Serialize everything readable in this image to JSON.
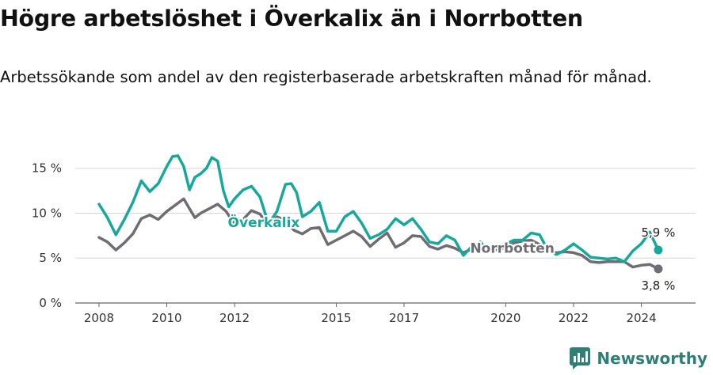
{
  "title": "Högre arbetslöshet i Överkalix än i Norrbotten",
  "subtitle": "Arbetssökande som andel av den registerbaserade arbetskraften månad för månad.",
  "brand": {
    "name": "Newsworthy",
    "icon": "newsworthy-logo-icon"
  },
  "colors": {
    "overkalix": "#16a89b",
    "norrbotten": "#6f6d73",
    "grid": "#d8d8d8",
    "brand": "#2e7f78"
  },
  "chart_data": {
    "type": "line",
    "ylim": [
      0,
      17
    ],
    "y_ticks": [
      0,
      5,
      10,
      15
    ],
    "y_tick_labels": [
      "0 %",
      "5 %",
      "10 %",
      "15 %"
    ],
    "x_ticks": [
      2008,
      2010,
      2012,
      2015,
      2017,
      2020,
      2022,
      2024
    ],
    "x_tick_labels": [
      "2008",
      "2010",
      "2012",
      "2015",
      "2017",
      "2020",
      "2022",
      "2024"
    ],
    "grid": true,
    "series": [
      {
        "name": "Överkalix",
        "end_label": "5,9 %",
        "points": [
          [
            2008.0,
            11.0
          ],
          [
            2008.25,
            9.5
          ],
          [
            2008.5,
            7.6
          ],
          [
            2008.75,
            9.3
          ],
          [
            2009.0,
            11.2
          ],
          [
            2009.25,
            13.6
          ],
          [
            2009.5,
            12.4
          ],
          [
            2009.75,
            13.3
          ],
          [
            2010.0,
            15.2
          ],
          [
            2010.17,
            16.3
          ],
          [
            2010.33,
            16.4
          ],
          [
            2010.5,
            15.2
          ],
          [
            2010.67,
            12.6
          ],
          [
            2010.83,
            14.0
          ],
          [
            2011.0,
            14.4
          ],
          [
            2011.17,
            15.0
          ],
          [
            2011.33,
            16.2
          ],
          [
            2011.5,
            15.8
          ],
          [
            2011.67,
            12.5
          ],
          [
            2011.83,
            10.7
          ],
          [
            2012.0,
            11.6
          ],
          [
            2012.25,
            12.6
          ],
          [
            2012.5,
            13.0
          ],
          [
            2012.75,
            11.8
          ],
          [
            2013.0,
            8.8
          ],
          [
            2013.25,
            10.2
          ],
          [
            2013.5,
            13.2
          ],
          [
            2013.67,
            13.3
          ],
          [
            2013.83,
            12.3
          ],
          [
            2014.0,
            9.6
          ],
          [
            2014.25,
            10.2
          ],
          [
            2014.5,
            11.2
          ],
          [
            2014.75,
            8.0
          ],
          [
            2015.0,
            8.0
          ],
          [
            2015.25,
            9.6
          ],
          [
            2015.5,
            10.2
          ],
          [
            2015.75,
            8.9
          ],
          [
            2016.0,
            7.2
          ],
          [
            2016.25,
            7.6
          ],
          [
            2016.5,
            8.2
          ],
          [
            2016.75,
            9.4
          ],
          [
            2017.0,
            8.7
          ],
          [
            2017.25,
            9.4
          ],
          [
            2017.5,
            8.2
          ],
          [
            2017.75,
            6.8
          ],
          [
            2018.0,
            6.6
          ],
          [
            2018.25,
            7.5
          ],
          [
            2018.5,
            7.0
          ],
          [
            2018.75,
            5.3
          ],
          [
            2019.0,
            6.3
          ],
          [
            2019.25,
            6.8
          ],
          [
            2019.5,
            5.7
          ],
          [
            2019.75,
            6.0
          ],
          [
            2020.0,
            6.6
          ],
          [
            2020.25,
            7.0
          ],
          [
            2020.5,
            7.0
          ],
          [
            2020.75,
            7.8
          ],
          [
            2021.0,
            7.6
          ],
          [
            2021.25,
            5.8
          ],
          [
            2021.5,
            5.4
          ],
          [
            2021.75,
            5.9
          ],
          [
            2022.0,
            6.6
          ],
          [
            2022.25,
            5.9
          ],
          [
            2022.5,
            5.1
          ],
          [
            2022.75,
            5.0
          ],
          [
            2023.0,
            4.9
          ],
          [
            2023.25,
            5.0
          ],
          [
            2023.5,
            4.6
          ],
          [
            2023.75,
            5.8
          ],
          [
            2024.0,
            6.6
          ],
          [
            2024.25,
            7.9
          ],
          [
            2024.5,
            5.9
          ]
        ]
      },
      {
        "name": "Norrbotten",
        "end_label": "3,8 %",
        "points": [
          [
            2008.0,
            7.3
          ],
          [
            2008.25,
            6.8
          ],
          [
            2008.5,
            5.9
          ],
          [
            2008.75,
            6.7
          ],
          [
            2009.0,
            7.7
          ],
          [
            2009.25,
            9.4
          ],
          [
            2009.5,
            9.8
          ],
          [
            2009.75,
            9.3
          ],
          [
            2010.0,
            10.2
          ],
          [
            2010.25,
            10.9
          ],
          [
            2010.5,
            11.6
          ],
          [
            2010.67,
            10.5
          ],
          [
            2010.83,
            9.5
          ],
          [
            2011.0,
            10.0
          ],
          [
            2011.25,
            10.5
          ],
          [
            2011.5,
            11.0
          ],
          [
            2011.75,
            10.2
          ],
          [
            2012.0,
            8.8
          ],
          [
            2012.25,
            9.3
          ],
          [
            2012.5,
            10.3
          ],
          [
            2012.75,
            9.9
          ],
          [
            2013.0,
            8.6
          ],
          [
            2013.25,
            9.6
          ],
          [
            2013.5,
            9.2
          ],
          [
            2013.75,
            8.1
          ],
          [
            2014.0,
            7.7
          ],
          [
            2014.25,
            8.3
          ],
          [
            2014.5,
            8.4
          ],
          [
            2014.75,
            6.5
          ],
          [
            2015.0,
            7.0
          ],
          [
            2015.25,
            7.5
          ],
          [
            2015.5,
            8.0
          ],
          [
            2015.75,
            7.4
          ],
          [
            2016.0,
            6.3
          ],
          [
            2016.25,
            7.1
          ],
          [
            2016.5,
            7.8
          ],
          [
            2016.75,
            6.2
          ],
          [
            2017.0,
            6.7
          ],
          [
            2017.25,
            7.5
          ],
          [
            2017.5,
            7.4
          ],
          [
            2017.75,
            6.3
          ],
          [
            2018.0,
            6.0
          ],
          [
            2018.25,
            6.4
          ],
          [
            2018.5,
            6.1
          ],
          [
            2018.75,
            5.6
          ],
          [
            2019.0,
            6.0
          ],
          [
            2019.25,
            6.4
          ],
          [
            2019.5,
            6.2
          ],
          [
            2019.75,
            5.9
          ],
          [
            2020.0,
            6.2
          ],
          [
            2020.25,
            6.7
          ],
          [
            2020.5,
            6.9
          ],
          [
            2020.75,
            7.0
          ],
          [
            2021.0,
            6.5
          ],
          [
            2021.25,
            5.7
          ],
          [
            2021.5,
            5.6
          ],
          [
            2021.75,
            5.7
          ],
          [
            2022.0,
            5.6
          ],
          [
            2022.25,
            5.3
          ],
          [
            2022.5,
            4.6
          ],
          [
            2022.75,
            4.5
          ],
          [
            2023.0,
            4.6
          ],
          [
            2023.25,
            4.6
          ],
          [
            2023.5,
            4.6
          ],
          [
            2023.75,
            4.0
          ],
          [
            2024.0,
            4.2
          ],
          [
            2024.25,
            4.3
          ],
          [
            2024.5,
            3.8
          ]
        ]
      }
    ]
  }
}
